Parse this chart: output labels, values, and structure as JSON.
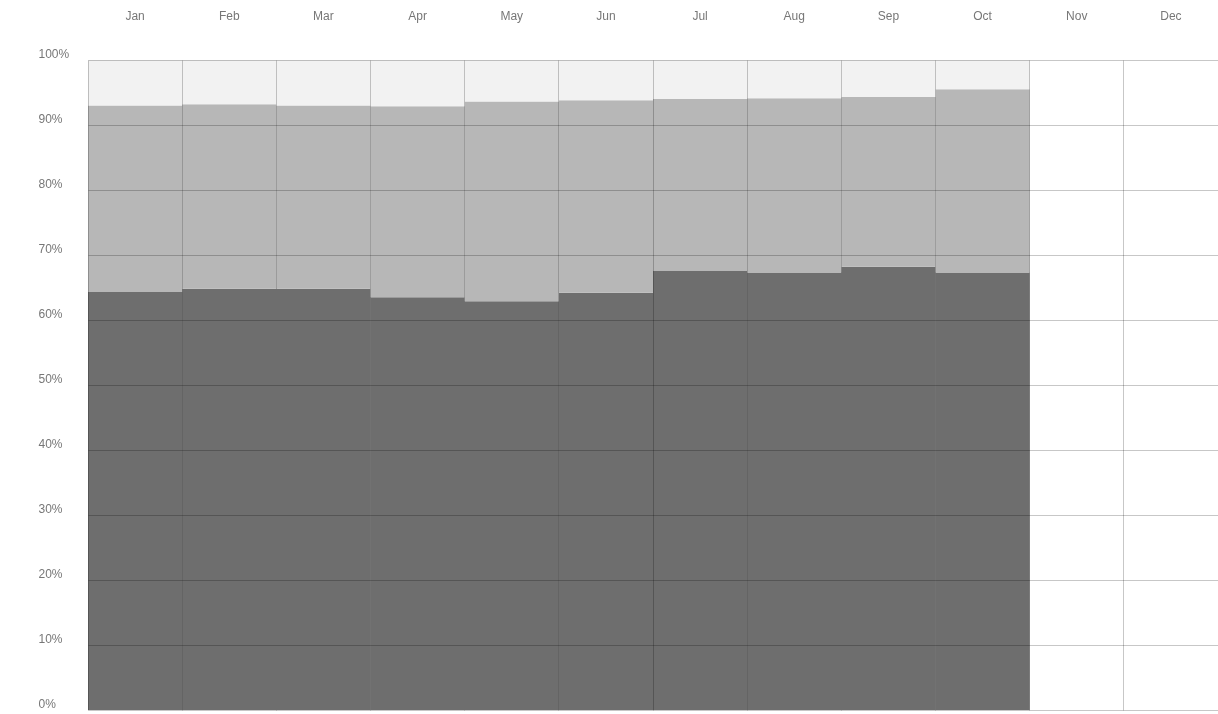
{
  "chart_data": {
    "type": "bar",
    "stacked": true,
    "grid": true,
    "categories": [
      "Jan",
      "Feb",
      "Mar",
      "Apr",
      "May",
      "Jun",
      "Jul",
      "Aug",
      "Sep",
      "Oct",
      "Nov",
      "Dec"
    ],
    "series": [
      {
        "color": "#6e6e6e",
        "values": [
          64.3,
          64.8,
          64.8,
          63.5,
          62.9,
          64.2,
          67.6,
          67.3,
          68.2,
          67.3,
          null,
          null
        ]
      },
      {
        "color": "#b7b7b7",
        "values": [
          28.7,
          28.4,
          28.2,
          29.4,
          30.7,
          29.6,
          26.4,
          26.8,
          26.1,
          28.2,
          null,
          null
        ]
      },
      {
        "color": "#f2f2f2",
        "values": [
          7.0,
          6.8,
          7.0,
          7.1,
          6.4,
          6.2,
          6.0,
          5.9,
          5.7,
          4.5,
          null,
          null
        ]
      }
    ],
    "ylim": [
      0,
      100
    ],
    "yticks": [
      {
        "value": 0,
        "label": "0%"
      },
      {
        "value": 10,
        "label": "10%"
      },
      {
        "value": 20,
        "label": "20%"
      },
      {
        "value": 30,
        "label": "30%"
      },
      {
        "value": 40,
        "label": "40%"
      },
      {
        "value": 50,
        "label": "50%"
      },
      {
        "value": 60,
        "label": "60%"
      },
      {
        "value": 70,
        "label": "70%"
      },
      {
        "value": 80,
        "label": "80%"
      },
      {
        "value": 90,
        "label": "90%"
      },
      {
        "value": 100,
        "label": "100%"
      }
    ]
  }
}
